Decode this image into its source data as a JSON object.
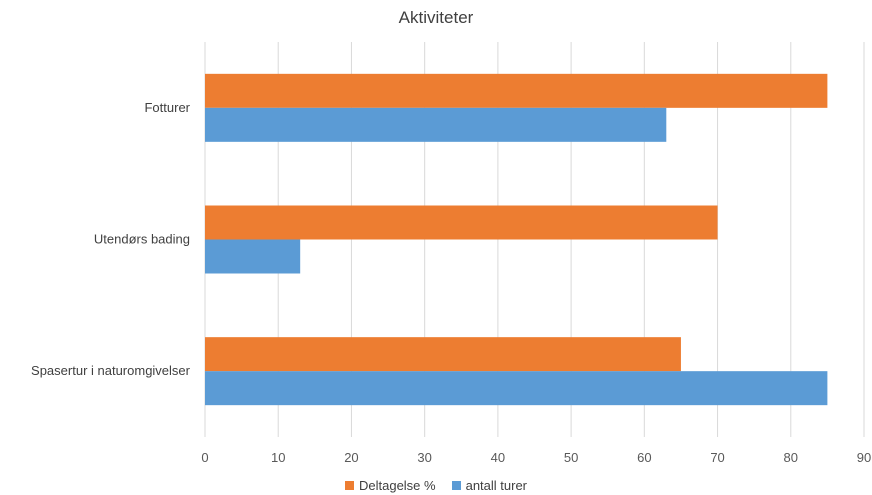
{
  "chart_data": {
    "type": "bar",
    "orientation": "horizontal",
    "title": "Aktiviteter",
    "categories": [
      "Fotturer",
      "Utendørs bading",
      "Spasertur i naturomgivelser"
    ],
    "series": [
      {
        "name": "Deltagelse %",
        "values": [
          85,
          70,
          65
        ],
        "color": "#ED7D31"
      },
      {
        "name": "antall turer",
        "values": [
          63,
          13,
          85
        ],
        "color": "#5B9BD5"
      }
    ],
    "xlim": [
      0,
      90
    ],
    "xticks": [
      0,
      10,
      20,
      30,
      40,
      50,
      60,
      70,
      80,
      90
    ],
    "grid": true,
    "legend_position": "bottom"
  }
}
